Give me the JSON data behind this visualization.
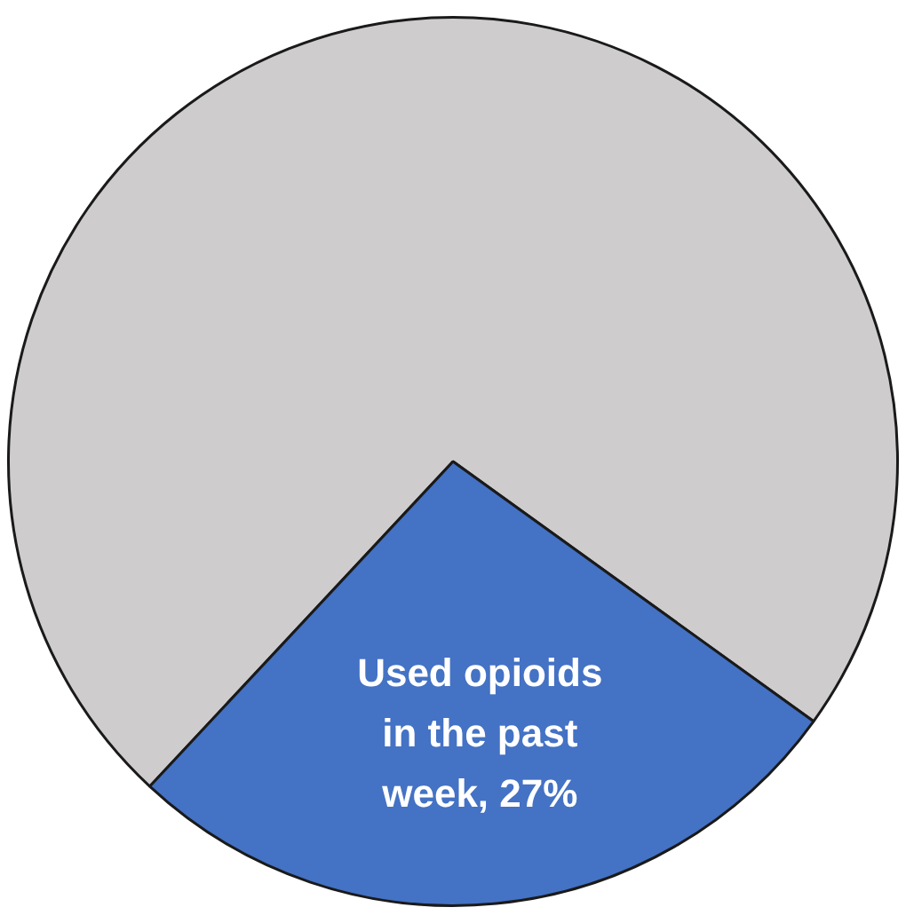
{
  "chart_data": {
    "type": "pie",
    "categories": [
      null,
      "Used opioids in the past week"
    ],
    "values": [
      73,
      27
    ],
    "colors": [
      "#cfcccd",
      "#4472c4"
    ],
    "value_labels": [
      null,
      "27%"
    ],
    "legend": false
  }
}
